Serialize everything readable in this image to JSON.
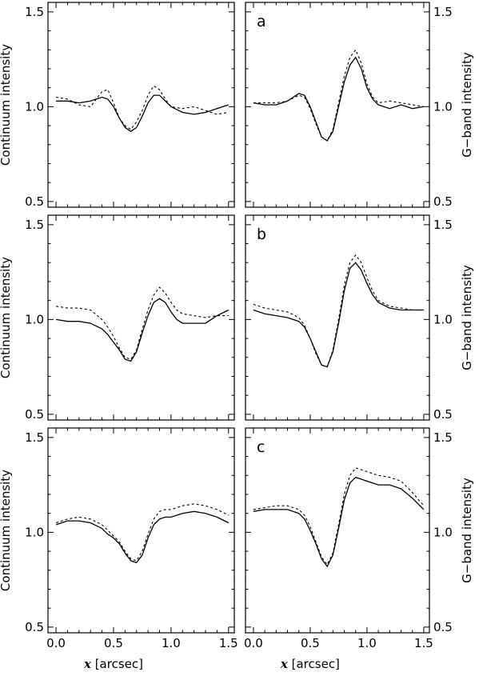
{
  "chart_data": [
    {
      "type": "line",
      "row": 0,
      "col": 0,
      "panel_label": "",
      "ylabel": "Continuum intensity",
      "xlabel": "",
      "xlim": [
        -0.07,
        1.55
      ],
      "ylim": [
        0.47,
        1.55
      ],
      "yticks": [
        0.5,
        1.0,
        1.5
      ],
      "ytick_labels": [
        "0.5",
        "1.0",
        "1.5"
      ],
      "xticks": [
        0,
        0.5,
        1.0,
        1.5
      ],
      "xtick_labels": [
        "",
        "",
        "",
        ""
      ],
      "series": [
        {
          "style": "solid",
          "x": [
            0,
            0.1,
            0.2,
            0.3,
            0.4,
            0.45,
            0.5,
            0.55,
            0.6,
            0.65,
            0.7,
            0.75,
            0.8,
            0.85,
            0.9,
            0.95,
            1.0,
            1.1,
            1.2,
            1.3,
            1.4,
            1.5
          ],
          "y": [
            1.03,
            1.03,
            1.02,
            1.03,
            1.05,
            1.04,
            1.0,
            0.94,
            0.89,
            0.87,
            0.89,
            0.95,
            1.02,
            1.06,
            1.06,
            1.03,
            1.0,
            0.97,
            0.96,
            0.97,
            0.99,
            1.01
          ]
        },
        {
          "style": "dashed",
          "x": [
            0,
            0.1,
            0.2,
            0.3,
            0.4,
            0.45,
            0.5,
            0.55,
            0.6,
            0.65,
            0.7,
            0.75,
            0.8,
            0.85,
            0.9,
            0.95,
            1.0,
            1.1,
            1.2,
            1.3,
            1.4,
            1.5
          ],
          "y": [
            1.05,
            1.04,
            1.01,
            1.0,
            1.08,
            1.09,
            1.02,
            0.94,
            0.9,
            0.88,
            0.92,
            0.98,
            1.06,
            1.11,
            1.09,
            1.04,
            1.0,
            0.99,
            1.0,
            0.98,
            0.96,
            0.97
          ]
        }
      ]
    },
    {
      "type": "line",
      "row": 0,
      "col": 1,
      "panel_label": "a",
      "ylabel": "G−band intensity",
      "xlabel": "",
      "xlim": [
        -0.07,
        1.55
      ],
      "ylim": [
        0.47,
        1.55
      ],
      "yticks": [
        0.5,
        1.0,
        1.5
      ],
      "ytick_labels": [
        "0.5",
        "1.0",
        "1.5"
      ],
      "xticks": [
        0,
        0.5,
        1.0,
        1.5
      ],
      "xtick_labels": [
        "",
        "",
        "",
        ""
      ],
      "series": [
        {
          "style": "solid",
          "x": [
            0,
            0.1,
            0.2,
            0.3,
            0.4,
            0.45,
            0.5,
            0.55,
            0.6,
            0.65,
            0.7,
            0.75,
            0.8,
            0.85,
            0.9,
            0.95,
            1.0,
            1.05,
            1.1,
            1.2,
            1.3,
            1.4,
            1.5
          ],
          "y": [
            1.02,
            1.01,
            1.01,
            1.03,
            1.07,
            1.06,
            1.0,
            0.92,
            0.84,
            0.82,
            0.87,
            1.0,
            1.13,
            1.22,
            1.26,
            1.2,
            1.1,
            1.04,
            1.01,
            0.99,
            1.01,
            0.99,
            1.0
          ]
        },
        {
          "style": "dashed",
          "x": [
            0,
            0.1,
            0.2,
            0.3,
            0.4,
            0.45,
            0.5,
            0.55,
            0.6,
            0.65,
            0.7,
            0.75,
            0.8,
            0.85,
            0.9,
            0.95,
            1.0,
            1.05,
            1.1,
            1.2,
            1.3,
            1.4,
            1.5
          ],
          "y": [
            1.02,
            1.02,
            1.02,
            1.03,
            1.06,
            1.05,
            0.99,
            0.91,
            0.84,
            0.82,
            0.88,
            1.02,
            1.16,
            1.26,
            1.3,
            1.23,
            1.12,
            1.05,
            1.02,
            1.03,
            1.02,
            1.01,
            1.0
          ]
        }
      ]
    },
    {
      "type": "line",
      "row": 1,
      "col": 0,
      "panel_label": "",
      "ylabel": "Continuum intensity",
      "xlabel": "",
      "xlim": [
        -0.07,
        1.55
      ],
      "ylim": [
        0.47,
        1.55
      ],
      "yticks": [
        0.5,
        1.0,
        1.5
      ],
      "ytick_labels": [
        "0.5",
        "1.0",
        "1.5"
      ],
      "xticks": [
        0,
        0.5,
        1.0,
        1.5
      ],
      "xtick_labels": [
        "",
        "",
        "",
        ""
      ],
      "series": [
        {
          "style": "solid",
          "x": [
            0,
            0.1,
            0.2,
            0.3,
            0.4,
            0.45,
            0.5,
            0.55,
            0.6,
            0.65,
            0.7,
            0.75,
            0.8,
            0.85,
            0.9,
            0.95,
            1.0,
            1.05,
            1.1,
            1.2,
            1.3,
            1.4,
            1.5
          ],
          "y": [
            1.0,
            0.99,
            0.99,
            0.98,
            0.95,
            0.92,
            0.88,
            0.84,
            0.79,
            0.78,
            0.83,
            0.93,
            1.02,
            1.09,
            1.11,
            1.09,
            1.04,
            1.0,
            0.98,
            0.98,
            0.98,
            1.02,
            1.05
          ]
        },
        {
          "style": "dashed",
          "x": [
            0,
            0.1,
            0.2,
            0.3,
            0.4,
            0.45,
            0.5,
            0.55,
            0.6,
            0.65,
            0.7,
            0.75,
            0.8,
            0.85,
            0.9,
            0.95,
            1.0,
            1.05,
            1.1,
            1.2,
            1.3,
            1.4,
            1.5
          ],
          "y": [
            1.07,
            1.06,
            1.06,
            1.05,
            1.0,
            0.96,
            0.91,
            0.85,
            0.8,
            0.79,
            0.84,
            0.95,
            1.05,
            1.13,
            1.17,
            1.14,
            1.09,
            1.05,
            1.03,
            1.02,
            1.01,
            1.02,
            1.02
          ]
        }
      ]
    },
    {
      "type": "line",
      "row": 1,
      "col": 1,
      "panel_label": "b",
      "ylabel": "G−band intensity",
      "xlabel": "",
      "xlim": [
        -0.07,
        1.55
      ],
      "ylim": [
        0.47,
        1.55
      ],
      "yticks": [
        0.5,
        1.0,
        1.5
      ],
      "ytick_labels": [
        "0.5",
        "1.0",
        "1.5"
      ],
      "xticks": [
        0,
        0.5,
        1.0,
        1.5
      ],
      "xtick_labels": [
        "",
        "",
        "",
        ""
      ],
      "series": [
        {
          "style": "solid",
          "x": [
            0,
            0.1,
            0.2,
            0.3,
            0.4,
            0.45,
            0.5,
            0.55,
            0.6,
            0.65,
            0.7,
            0.75,
            0.8,
            0.85,
            0.9,
            0.95,
            1.0,
            1.05,
            1.1,
            1.2,
            1.3,
            1.4,
            1.5
          ],
          "y": [
            1.05,
            1.03,
            1.02,
            1.01,
            0.99,
            0.96,
            0.9,
            0.83,
            0.76,
            0.75,
            0.83,
            0.98,
            1.15,
            1.27,
            1.3,
            1.26,
            1.19,
            1.13,
            1.09,
            1.06,
            1.05,
            1.05,
            1.05
          ]
        },
        {
          "style": "dashed",
          "x": [
            0,
            0.1,
            0.2,
            0.3,
            0.4,
            0.45,
            0.5,
            0.55,
            0.6,
            0.65,
            0.7,
            0.75,
            0.8,
            0.85,
            0.9,
            0.95,
            1.0,
            1.05,
            1.1,
            1.2,
            1.3,
            1.4,
            1.5
          ],
          "y": [
            1.08,
            1.06,
            1.05,
            1.04,
            1.01,
            0.97,
            0.9,
            0.82,
            0.76,
            0.75,
            0.84,
            1.0,
            1.18,
            1.3,
            1.34,
            1.3,
            1.22,
            1.15,
            1.1,
            1.07,
            1.06,
            1.05,
            1.05
          ]
        }
      ]
    },
    {
      "type": "line",
      "row": 2,
      "col": 0,
      "panel_label": "",
      "ylabel": "Continuum intensity",
      "xlabel": "x [arcsec]",
      "xlim": [
        -0.07,
        1.55
      ],
      "ylim": [
        0.47,
        1.55
      ],
      "yticks": [
        0.5,
        1.0,
        1.5
      ],
      "ytick_labels": [
        "0.5",
        "1.0",
        "1.5"
      ],
      "xticks": [
        0,
        0.5,
        1.0,
        1.5
      ],
      "xtick_labels": [
        "0.0",
        "0.5",
        "1.0",
        "1.5"
      ],
      "series": [
        {
          "style": "solid",
          "x": [
            0,
            0.1,
            0.2,
            0.3,
            0.4,
            0.45,
            0.5,
            0.55,
            0.6,
            0.65,
            0.7,
            0.75,
            0.8,
            0.85,
            0.9,
            0.95,
            1.0,
            1.1,
            1.2,
            1.3,
            1.4,
            1.5
          ],
          "y": [
            1.04,
            1.06,
            1.06,
            1.05,
            1.02,
            0.99,
            0.97,
            0.94,
            0.89,
            0.85,
            0.84,
            0.88,
            0.97,
            1.04,
            1.07,
            1.08,
            1.08,
            1.1,
            1.11,
            1.1,
            1.08,
            1.05
          ]
        },
        {
          "style": "dashed",
          "x": [
            0,
            0.1,
            0.2,
            0.3,
            0.4,
            0.45,
            0.5,
            0.55,
            0.6,
            0.65,
            0.7,
            0.75,
            0.8,
            0.85,
            0.9,
            0.95,
            1.0,
            1.1,
            1.2,
            1.3,
            1.4,
            1.5
          ],
          "y": [
            1.05,
            1.07,
            1.08,
            1.07,
            1.04,
            1.01,
            0.98,
            0.95,
            0.9,
            0.86,
            0.85,
            0.9,
            0.99,
            1.07,
            1.11,
            1.12,
            1.12,
            1.14,
            1.15,
            1.14,
            1.12,
            1.09
          ]
        }
      ]
    },
    {
      "type": "line",
      "row": 2,
      "col": 1,
      "panel_label": "c",
      "ylabel": "G−band intensity",
      "xlabel": "x [arcsec]",
      "xlim": [
        -0.07,
        1.55
      ],
      "ylim": [
        0.47,
        1.55
      ],
      "yticks": [
        0.5,
        1.0,
        1.5
      ],
      "ytick_labels": [
        "0.5",
        "1.0",
        "1.5"
      ],
      "xticks": [
        0,
        0.5,
        1.0,
        1.5
      ],
      "xtick_labels": [
        "0.0",
        "0.5",
        "1.0",
        "1.5"
      ],
      "series": [
        {
          "style": "solid",
          "x": [
            0,
            0.1,
            0.2,
            0.3,
            0.4,
            0.45,
            0.5,
            0.55,
            0.6,
            0.65,
            0.7,
            0.75,
            0.8,
            0.85,
            0.9,
            0.95,
            1.0,
            1.1,
            1.2,
            1.3,
            1.4,
            1.5
          ],
          "y": [
            1.11,
            1.12,
            1.12,
            1.12,
            1.1,
            1.07,
            1.01,
            0.94,
            0.86,
            0.82,
            0.88,
            1.02,
            1.17,
            1.26,
            1.29,
            1.28,
            1.27,
            1.25,
            1.25,
            1.23,
            1.18,
            1.12
          ]
        },
        {
          "style": "dashed",
          "x": [
            0,
            0.1,
            0.2,
            0.3,
            0.4,
            0.45,
            0.5,
            0.55,
            0.6,
            0.65,
            0.7,
            0.75,
            0.8,
            0.85,
            0.9,
            0.95,
            1.0,
            1.1,
            1.2,
            1.3,
            1.4,
            1.5
          ],
          "y": [
            1.12,
            1.13,
            1.14,
            1.14,
            1.12,
            1.09,
            1.03,
            0.95,
            0.87,
            0.83,
            0.89,
            1.04,
            1.2,
            1.3,
            1.34,
            1.33,
            1.32,
            1.3,
            1.29,
            1.27,
            1.21,
            1.14
          ]
        }
      ]
    }
  ]
}
